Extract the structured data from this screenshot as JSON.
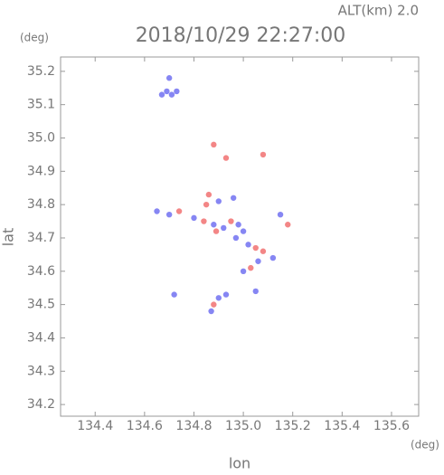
{
  "chart_data": {
    "type": "scatter",
    "title": "2018/10/29 22:27:00",
    "subtitle": "ALT(km) 2.0",
    "x_label": "lon",
    "y_label": "lat",
    "x_unit": "(deg)",
    "y_unit": "(deg)",
    "xlim": [
      134.26,
      135.71
    ],
    "ylim": [
      34.165,
      35.243
    ],
    "xticks": [
      134.4,
      134.6,
      134.8,
      {
        "value": 135,
        "label": "135.0"
      },
      135.2,
      135.4,
      135.6
    ],
    "yticks": [
      34.2,
      34.3,
      34.4,
      34.5,
      34.6,
      34.7,
      34.8,
      34.9,
      {
        "value": 35,
        "label": "35.0"
      },
      35.1,
      35.2
    ],
    "series": [
      {
        "color": "#6868f0",
        "x": [
          134.7,
          134.69,
          134.67,
          134.71,
          134.73,
          134.9,
          134.65,
          134.7,
          134.8,
          134.88,
          134.92,
          134.98,
          135.0,
          134.97,
          135.02,
          135.06,
          135.0,
          135.12,
          135.15,
          134.72,
          134.9,
          134.93,
          134.87,
          135.05,
          134.96
        ],
        "values": [
          35.18,
          35.14,
          35.13,
          35.13,
          35.14,
          34.81,
          34.78,
          34.77,
          34.76,
          34.74,
          34.73,
          34.74,
          34.72,
          34.7,
          34.68,
          34.63,
          34.6,
          34.64,
          34.77,
          34.53,
          34.52,
          34.53,
          34.48,
          34.54,
          34.82
        ]
      },
      {
        "color": "#f06868",
        "x": [
          134.88,
          134.93,
          135.08,
          134.86,
          134.85,
          134.74,
          134.84,
          134.95,
          135.05,
          135.08,
          135.03,
          135.18,
          134.88,
          134.89
        ],
        "values": [
          34.98,
          34.94,
          34.95,
          34.83,
          34.8,
          34.78,
          34.75,
          34.75,
          34.67,
          34.66,
          34.61,
          34.74,
          34.5,
          34.72
        ]
      }
    ]
  }
}
